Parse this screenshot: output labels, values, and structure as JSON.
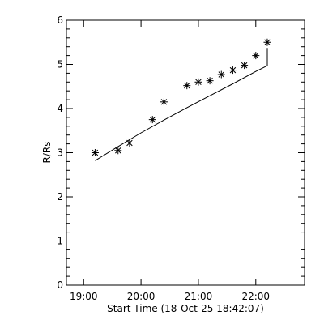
{
  "chart_data": {
    "type": "scatter",
    "xlabel": "Start Time (18-Oct-25 18:42:07)",
    "ylabel": "R/Rs",
    "x_tick_labels": [
      "19:00",
      "20:00",
      "21:00",
      "22:00"
    ],
    "x_tick_values_hours": [
      19,
      20,
      21,
      22
    ],
    "xlim_hours": [
      18.7,
      22.85
    ],
    "y_tick_labels": [
      "0",
      "1",
      "2",
      "3",
      "4",
      "5",
      "6"
    ],
    "ylim": [
      0,
      6
    ],
    "grid": false,
    "legend": "none",
    "series": [
      {
        "marker": "asterisk",
        "points": [
          {
            "time": "19:12",
            "r": 3.0
          },
          {
            "time": "19:36",
            "r": 3.05
          },
          {
            "time": "19:48",
            "r": 3.22
          },
          {
            "time": "20:12",
            "r": 3.75
          },
          {
            "time": "20:24",
            "r": 4.15
          },
          {
            "time": "20:48",
            "r": 4.52
          },
          {
            "time": "21:00",
            "r": 4.6
          },
          {
            "time": "21:12",
            "r": 4.63
          },
          {
            "time": "21:24",
            "r": 4.77
          },
          {
            "time": "21:36",
            "r": 4.87
          },
          {
            "time": "21:48",
            "r": 4.98
          },
          {
            "time": "22:00",
            "r": 5.2
          },
          {
            "time": "22:12",
            "r": 5.5
          }
        ]
      },
      {
        "style": "line",
        "points": [
          {
            "time": "19:12",
            "r": 2.82
          },
          {
            "time": "19:36",
            "r": 3.14
          },
          {
            "time": "20:00",
            "r": 3.45
          },
          {
            "time": "20:24",
            "r": 3.74
          },
          {
            "time": "20:48",
            "r": 4.02
          },
          {
            "time": "21:12",
            "r": 4.29
          },
          {
            "time": "21:36",
            "r": 4.56
          },
          {
            "time": "22:00",
            "r": 4.84
          },
          {
            "time": "22:12",
            "r": 4.97
          },
          {
            "time": "22:12",
            "r": 5.37
          }
        ]
      }
    ]
  }
}
